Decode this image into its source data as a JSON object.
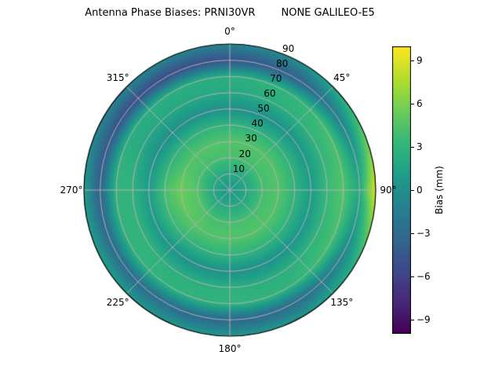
{
  "figure": {
    "title": "Antenna Phase Biases: PRNI30VR        NONE GALILEO-E5",
    "background": "#ffffff"
  },
  "chart_data": {
    "type": "heatmap",
    "projection": "polar",
    "title": "Antenna Phase Biases: PRNI30VR        NONE GALILEO-E5",
    "theta_zero_location": "N",
    "theta_direction": "clockwise",
    "theta_ticks_deg": [
      0,
      45,
      90,
      135,
      180,
      225,
      270,
      315
    ],
    "theta_tick_labels": [
      "0°",
      "45°",
      "90°",
      "135°",
      "180°",
      "225°",
      "270°",
      "315°"
    ],
    "r_ticks": [
      10,
      20,
      30,
      40,
      50,
      60,
      70,
      80,
      90
    ],
    "r_tick_labels": [
      "10",
      "20",
      "30",
      "40",
      "50",
      "60",
      "70",
      "80",
      "90"
    ],
    "r_label_azimuth_deg": 22.5,
    "rlim": [
      0,
      90
    ],
    "grid_on": true,
    "grid_color": "#b2b2b2",
    "colorbar": {
      "label": "Bias (mm)",
      "ticks": [
        9,
        6,
        3,
        0,
        -3,
        -6,
        -9
      ],
      "tick_labels": [
        "9",
        "6",
        "3",
        "0",
        "−3",
        "−6",
        "−9"
      ],
      "vmin": -10,
      "vmax": 10,
      "colormap": "viridis",
      "stops": [
        "#440154",
        "#482878",
        "#3e4a89",
        "#31688e",
        "#26828e",
        "#1f9e89",
        "#35b779",
        "#6ece58",
        "#b5de2b",
        "#fde725"
      ]
    },
    "grid": {
      "azimuth_deg": [
        0,
        30,
        60,
        90,
        120,
        150,
        180,
        210,
        240,
        270,
        300,
        330
      ],
      "zenith_deg": [
        0,
        10,
        20,
        30,
        40,
        50,
        60,
        70,
        80,
        90
      ],
      "bias_mm": [
        [
          0.5,
          2,
          4,
          4.5,
          3,
          0,
          2,
          2.5,
          -5,
          -1
        ],
        [
          0.5,
          2,
          4,
          4.5,
          3,
          0,
          2.5,
          3,
          -4,
          0
        ],
        [
          0.5,
          2,
          4,
          4.5,
          3,
          0.5,
          3,
          4,
          -1,
          4
        ],
        [
          0.5,
          2,
          4,
          4.5,
          3,
          1,
          3.5,
          4.5,
          2,
          9
        ],
        [
          0.5,
          2,
          4,
          4.5,
          3,
          0.5,
          3,
          4,
          -1,
          3
        ],
        [
          0.5,
          2,
          4,
          4.5,
          3,
          0,
          2.5,
          3,
          -3,
          0.5
        ],
        [
          0.5,
          2,
          4,
          4.5,
          3,
          0,
          2.5,
          3,
          -3.5,
          0.5
        ],
        [
          0.5,
          2,
          4,
          4.5,
          3,
          0,
          2.5,
          3,
          -3,
          0.5
        ],
        [
          0.5,
          2,
          4.5,
          5,
          3.5,
          0.5,
          3,
          3,
          -3,
          1
        ],
        [
          0.5,
          2,
          4.5,
          5.5,
          4,
          1,
          3,
          3,
          -4,
          1
        ],
        [
          0.5,
          2,
          4,
          4.5,
          3,
          0,
          2,
          2.5,
          -5,
          -1
        ],
        [
          0.5,
          2,
          4,
          4.5,
          3,
          0,
          2,
          2.5,
          -5.5,
          -1
        ]
      ]
    }
  }
}
